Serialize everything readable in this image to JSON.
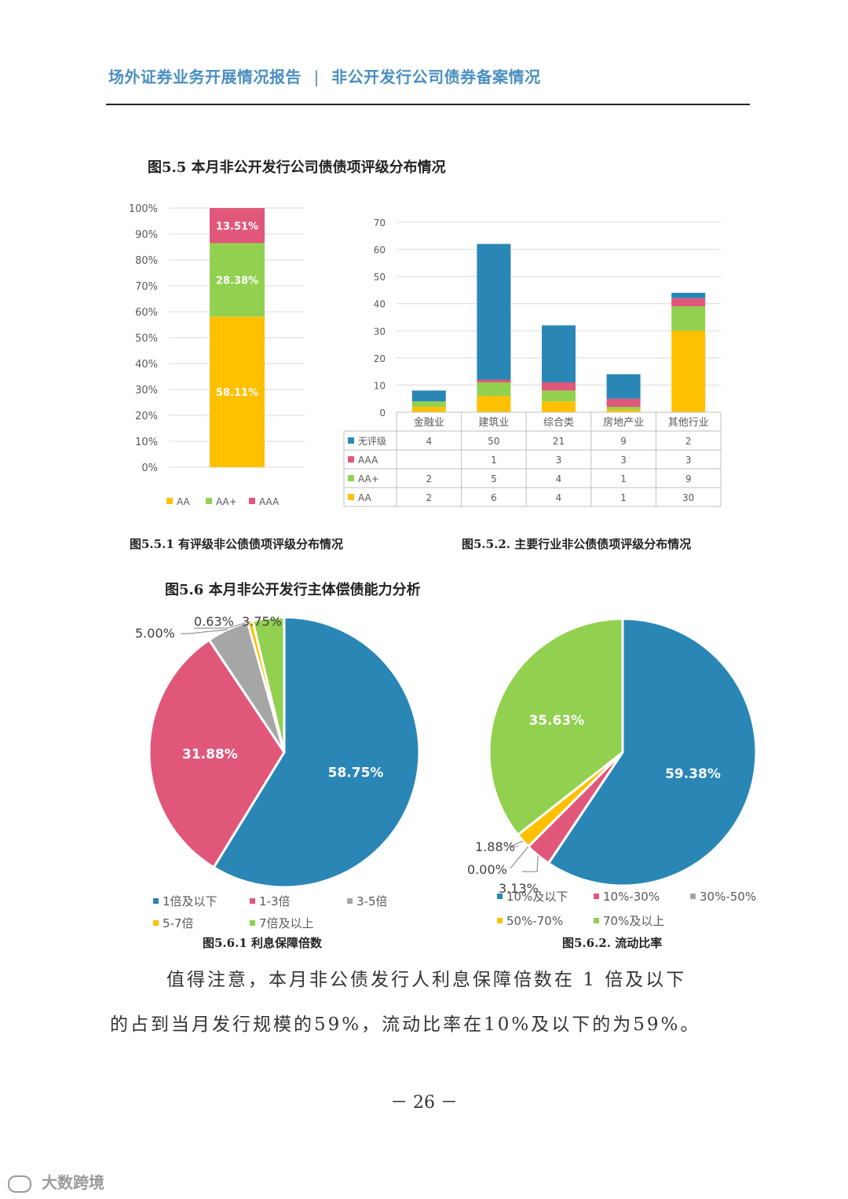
{
  "header": {
    "title": "场外证券业务开展情况报告",
    "separator": "|",
    "section": "非公开发行公司债券备案情况"
  },
  "figure_5_5": {
    "title": "图5.5 本月非公开发行公司债债项评级分布情况",
    "caption_left": "图5.5.1 有评级非公债债项评级分布情况",
    "caption_right": "图5.5.2. 主要行业非公债债项评级分布情况"
  },
  "figure_5_6": {
    "title": "图5.6 本月非公开发行主体偿债能力分析",
    "caption_left": "图5.6.1 利息保障倍数",
    "caption_right": "图5.6.2. 流动比率"
  },
  "paragraph": {
    "line1": "值得注意，本月非公债发行人利息保障倍数在 1 倍及以下",
    "line2": "的占到当月发行规模的59%，流动比率在10%及以下的为59%。"
  },
  "page_number": "－ 26 －",
  "watermark": "大数跨境",
  "colors": {
    "blue": "#2a86b5",
    "pink": "#e0577a",
    "gray": "#a6a6a6",
    "yellow": "#ffc000",
    "green": "#92d050",
    "header": "#4a8fc0"
  },
  "chart_data": [
    {
      "id": "rating-stack",
      "type": "bar",
      "stacked": true,
      "percent": true,
      "categories": [
        ""
      ],
      "series": [
        {
          "name": "AA",
          "values": [
            58.11
          ],
          "label": "58.11%"
        },
        {
          "name": "AA+",
          "values": [
            28.38
          ],
          "label": "28.38%"
        },
        {
          "name": "AAA",
          "values": [
            13.51
          ],
          "label": "13.51%"
        }
      ],
      "ylim": [
        0,
        100
      ],
      "yticks": [
        "0%",
        "10%",
        "20%",
        "30%",
        "40%",
        "50%",
        "60%",
        "70%",
        "80%",
        "90%",
        "100%"
      ],
      "legend": "bottom",
      "grid": true
    },
    {
      "id": "industry-stack",
      "type": "bar",
      "stacked": true,
      "categories": [
        "金融业",
        "建筑业",
        "综合类",
        "房地产业",
        "其他行业"
      ],
      "series": [
        {
          "name": "AA",
          "values": [
            2,
            6,
            4,
            1,
            30
          ]
        },
        {
          "name": "AA+",
          "values": [
            2,
            5,
            4,
            1,
            9
          ]
        },
        {
          "name": "AAA",
          "values": [
            null,
            1,
            3,
            3,
            3
          ]
        },
        {
          "name": "无评级",
          "values": [
            4,
            50,
            21,
            9,
            2
          ]
        }
      ],
      "table_order": [
        "无评级",
        "AAA",
        "AA+",
        "AA"
      ],
      "ylim": [
        0,
        70
      ],
      "yticks": [
        "0",
        "10",
        "20",
        "30",
        "40",
        "50",
        "60",
        "70"
      ],
      "grid": true,
      "data_table": true
    },
    {
      "id": "interest-coverage",
      "type": "pie",
      "categories": [
        "1倍及以下",
        "1-3倍",
        "3-5倍",
        "5-7倍",
        "7倍及以上"
      ],
      "values": [
        58.75,
        31.88,
        5.0,
        0.63,
        3.75
      ],
      "labels": [
        "58.75%",
        "31.88%",
        "5.00%",
        "0.63%",
        "3.75%"
      ],
      "legend": "bottom"
    },
    {
      "id": "current-ratio",
      "type": "pie",
      "categories": [
        "10%及以下",
        "10%-30%",
        "30%-50%",
        "50%-70%",
        "70%及以上"
      ],
      "values": [
        59.38,
        3.13,
        0.0,
        1.88,
        35.63
      ],
      "labels": [
        "59.38%",
        "3.13%",
        "0.00%",
        "1.88%",
        "35.63%"
      ],
      "legend": "bottom"
    }
  ]
}
